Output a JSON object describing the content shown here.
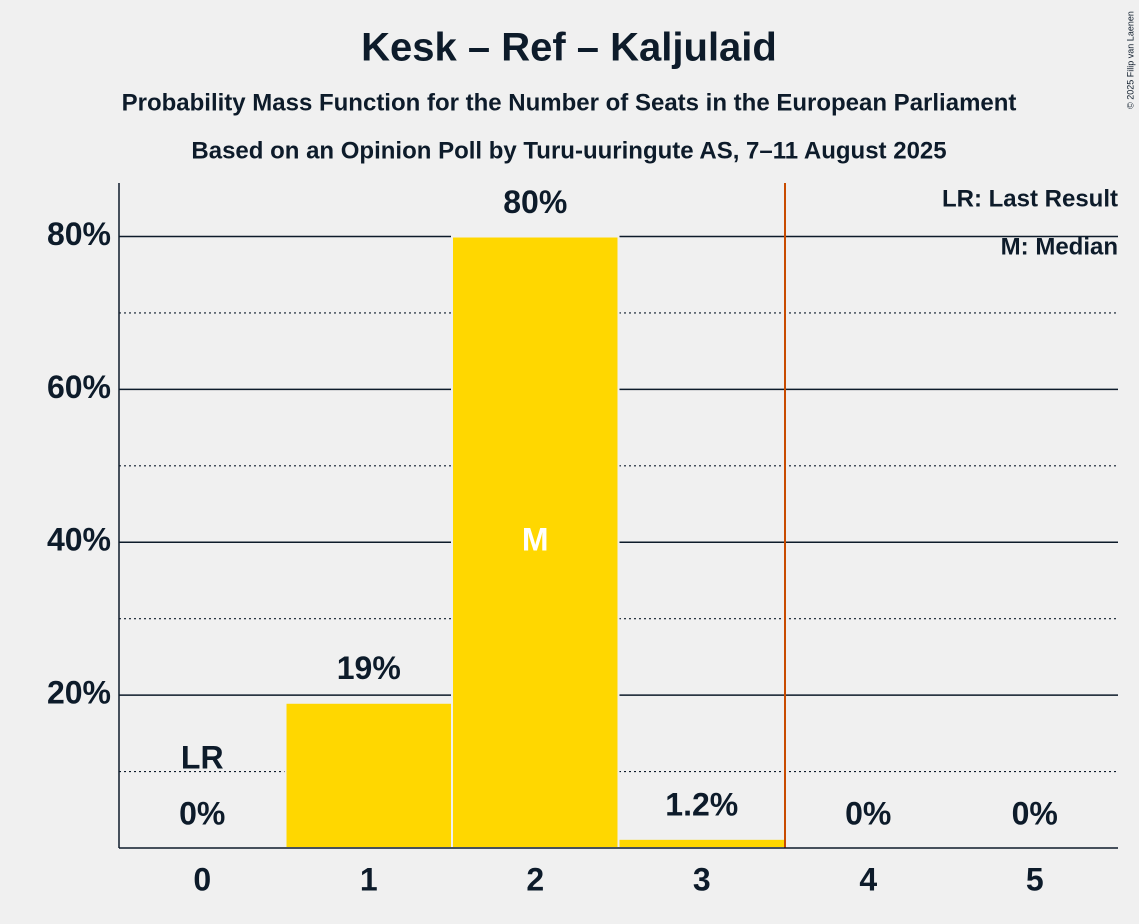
{
  "chart_data": {
    "type": "bar",
    "title": "Kesk – Ref – Kaljulaid",
    "subtitle": "Probability Mass Function for the Number of Seats in the European Parliament",
    "subtitle2": "Based on an Opinion Poll by Turu-uuringute AS, 7–11 August 2025",
    "copyright": "© 2025 Filip van Laenen",
    "categories": [
      "0",
      "1",
      "2",
      "3",
      "4",
      "5"
    ],
    "values": [
      0,
      19,
      80,
      1.2,
      0,
      0
    ],
    "value_labels": [
      "0%",
      "19%",
      "80%",
      "1.2%",
      "0%",
      "0%"
    ],
    "color": "#ffd700",
    "ylim": [
      0,
      87
    ],
    "yticks": [
      {
        "value": 20,
        "label": "20%"
      },
      {
        "value": 40,
        "label": "40%"
      },
      {
        "value": 60,
        "label": "60%"
      },
      {
        "value": 80,
        "label": "80%"
      }
    ],
    "minor_yticks": [
      10,
      30,
      50,
      70
    ],
    "grid": true,
    "last_result": 0,
    "last_result_label": "LR",
    "median": 2,
    "median_label": "M",
    "threshold_line": {
      "x": 3.5,
      "color": "#c84b00"
    },
    "legend": [
      "LR: Last Result",
      "M: Median"
    ]
  }
}
